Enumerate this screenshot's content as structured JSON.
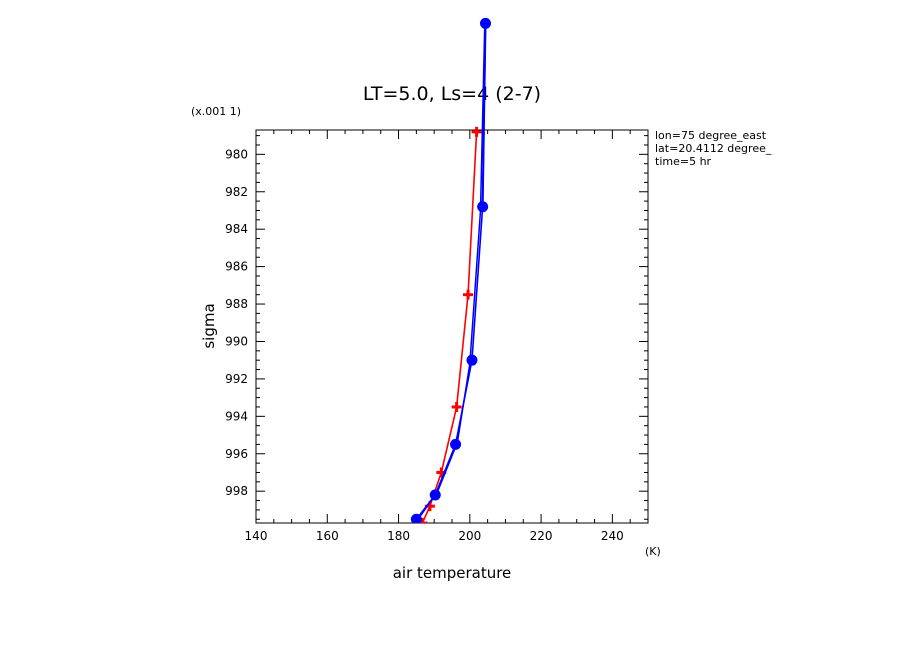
{
  "chart_data": {
    "type": "line",
    "title": "LT=5.0, Ls=4 (2-7)",
    "xlabel": "air temperature",
    "xunit": "(K)",
    "ylabel": "sigma",
    "yscale_note": "(x.001 1)",
    "info": [
      "lon=75 degree_east",
      "lat=20.4112 degree_",
      "time=5 hr"
    ],
    "xlim": [
      140,
      250
    ],
    "ylim": [
      978.7,
      999.7
    ],
    "y_inverted": true,
    "x_ticks": [
      140,
      160,
      180,
      200,
      220,
      240
    ],
    "y_ticks": [
      980,
      982,
      984,
      986,
      988,
      990,
      992,
      994,
      996,
      998
    ],
    "grid": false,
    "series": [
      {
        "color": "#ff0000",
        "marker": "plus",
        "x": [
          186.7,
          188.8,
          192.0,
          196.3,
          199.5,
          201.9
        ],
        "y": [
          999.7,
          998.8,
          997.0,
          993.5,
          987.5,
          978.8
        ]
      },
      {
        "color": "#0000ff",
        "marker": "circle",
        "x": [
          185.0,
          190.3,
          196.0,
          200.6,
          203.6,
          204.4
        ],
        "y": [
          999.5,
          998.2,
          995.5,
          991.0,
          982.8,
          973.0
        ]
      },
      {
        "color": "#0000ff",
        "marker": "none",
        "x": [
          185.5,
          191.0,
          196.5,
          200.0,
          203.0,
          204.2
        ],
        "y": [
          999.5,
          998.0,
          995.4,
          991.2,
          983.0,
          973.0
        ]
      }
    ]
  }
}
